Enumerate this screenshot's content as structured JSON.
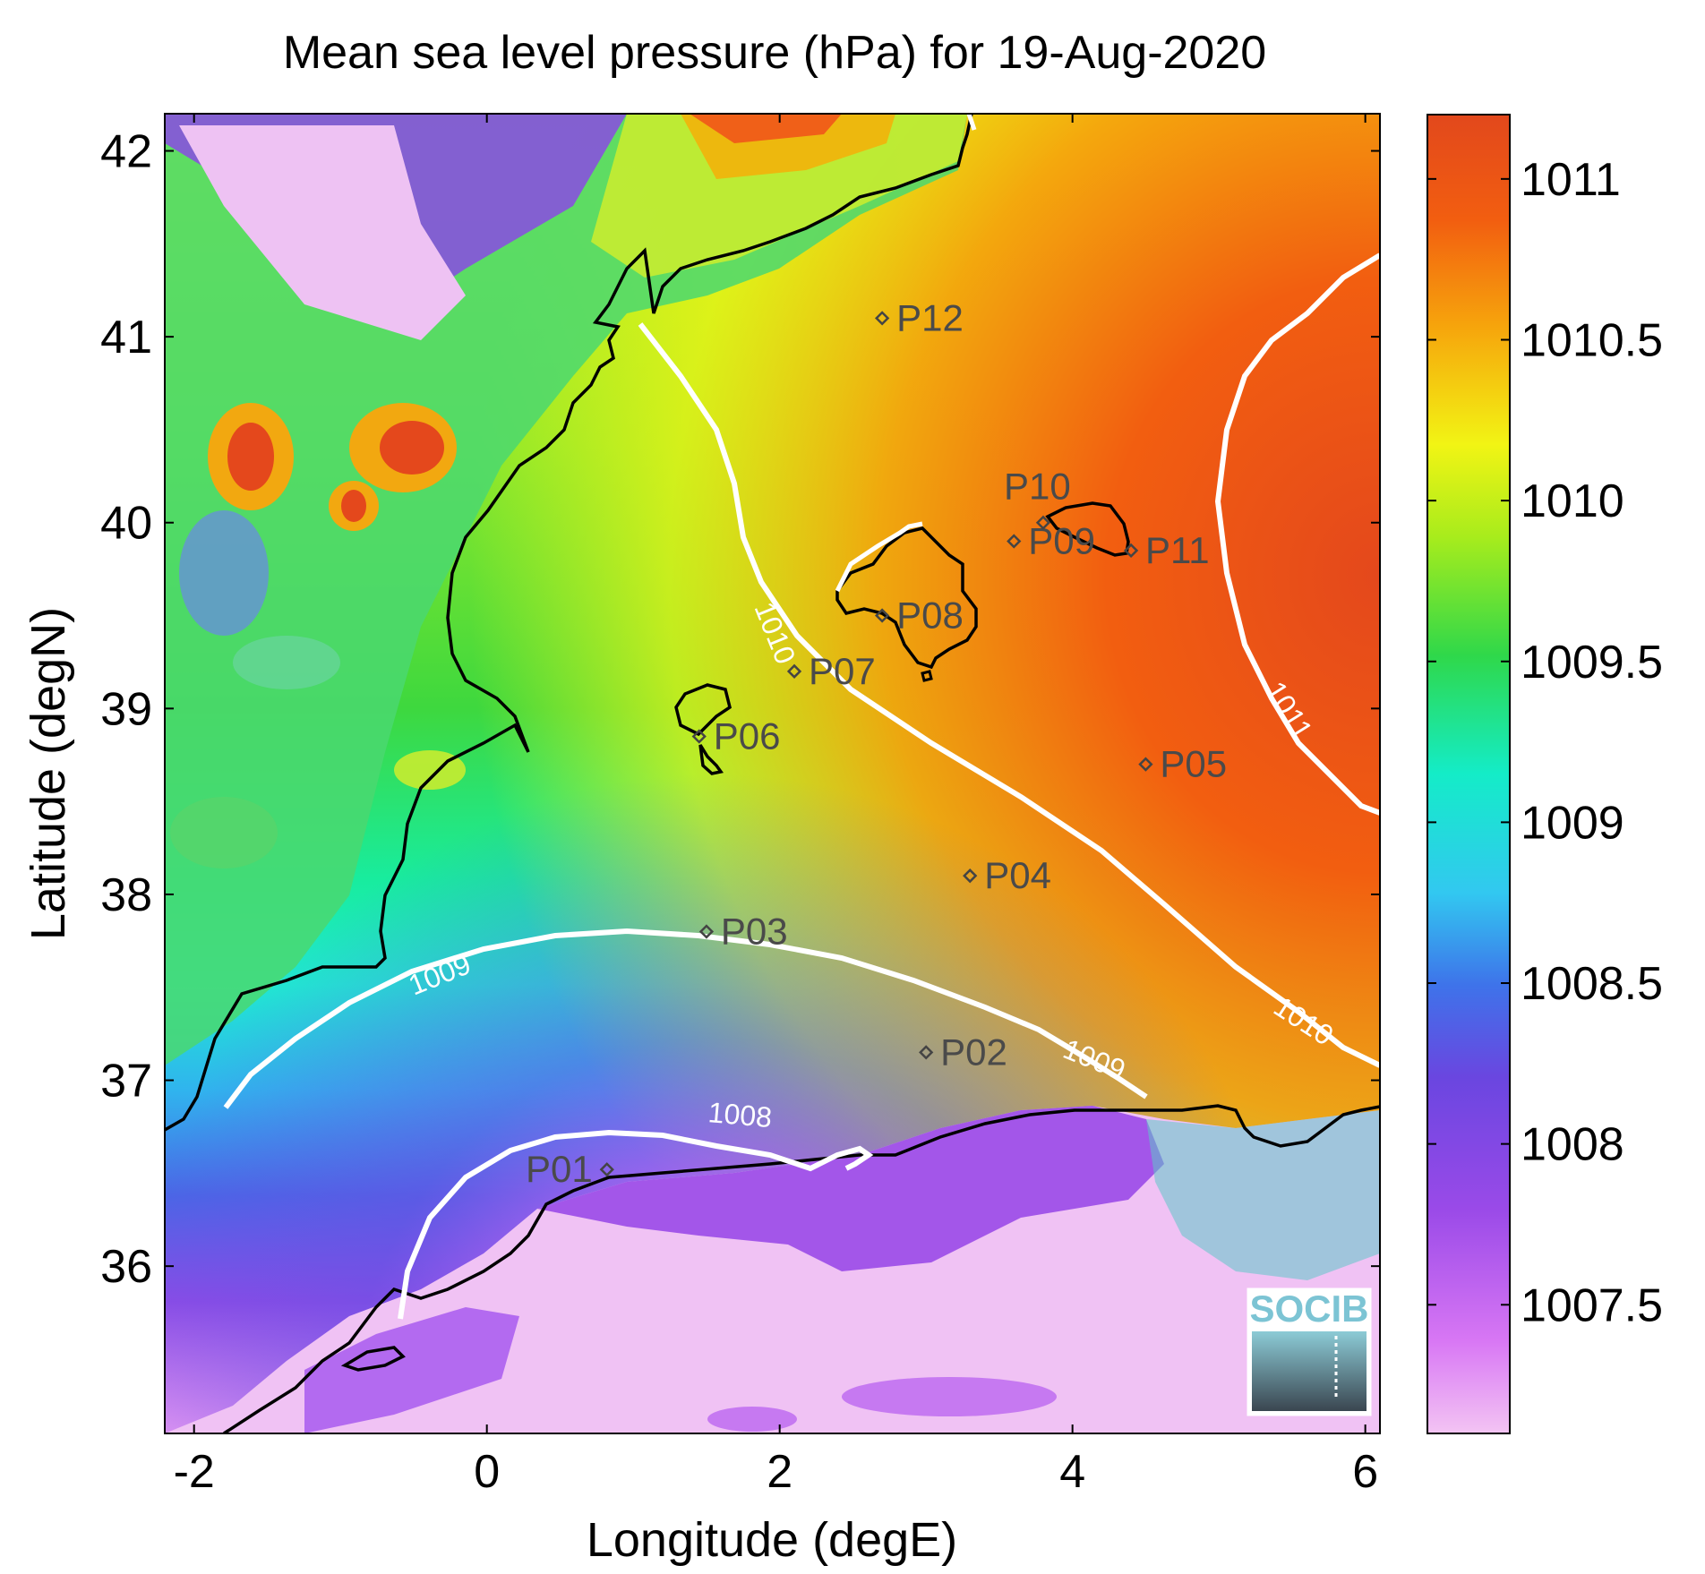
{
  "title": "Mean sea level pressure (hPa) for 19-Aug-2020",
  "xlabel": "Longitude (degE)",
  "ylabel": "Latitude (degN)",
  "xticks": [
    "-2",
    "0",
    "2",
    "4",
    "6"
  ],
  "yticks": [
    "36",
    "37",
    "38",
    "39",
    "40",
    "41",
    "42"
  ],
  "colorbar": {
    "ticks": [
      "1007.5",
      "1008",
      "1008.5",
      "1009",
      "1009.5",
      "1010",
      "1010.5",
      "1011"
    ],
    "range": [
      1007.1,
      1011.2
    ],
    "colors": [
      "#f3c4f3",
      "#cf66f5",
      "#7a40e0",
      "#3e66e8",
      "#32c8f0",
      "#14ecc8",
      "#2fd84a",
      "#a8ec1c",
      "#f2f414",
      "#f6a40c",
      "#f25e10",
      "#e2481c"
    ]
  },
  "contour_labels": {
    "c1008": "1008",
    "c1009a": "1009",
    "c1009b": "1009",
    "c1010a": "1010",
    "c1010b": "1010",
    "c1011": "1011"
  },
  "logo_text": "SOCIB",
  "chart_data": {
    "type": "heatmap",
    "title": "Mean sea level pressure (hPa) for 19-Aug-2020",
    "xlabel": "Longitude (degE)",
    "ylabel": "Latitude (degN)",
    "xlim": [
      -2.2,
      6.1
    ],
    "ylim": [
      35.1,
      42.2
    ],
    "zlim": [
      1007.1,
      1011.2
    ],
    "contour_levels": [
      1008,
      1009,
      1010,
      1011
    ],
    "points": [
      {
        "name": "P01",
        "lon": 0.82,
        "lat": 36.52
      },
      {
        "name": "P02",
        "lon": 3.0,
        "lat": 37.15
      },
      {
        "name": "P03",
        "lon": 1.5,
        "lat": 37.8
      },
      {
        "name": "P04",
        "lon": 3.3,
        "lat": 38.1
      },
      {
        "name": "P05",
        "lon": 4.5,
        "lat": 38.7
      },
      {
        "name": "P06",
        "lon": 1.45,
        "lat": 38.85
      },
      {
        "name": "P07",
        "lon": 2.1,
        "lat": 39.2
      },
      {
        "name": "P08",
        "lon": 2.7,
        "lat": 39.5
      },
      {
        "name": "P09",
        "lon": 3.6,
        "lat": 39.9
      },
      {
        "name": "P10",
        "lon": 3.8,
        "lat": 40.0
      },
      {
        "name": "P11",
        "lon": 4.4,
        "lat": 39.85
      },
      {
        "name": "P12",
        "lon": 2.7,
        "lat": 41.1
      }
    ]
  }
}
